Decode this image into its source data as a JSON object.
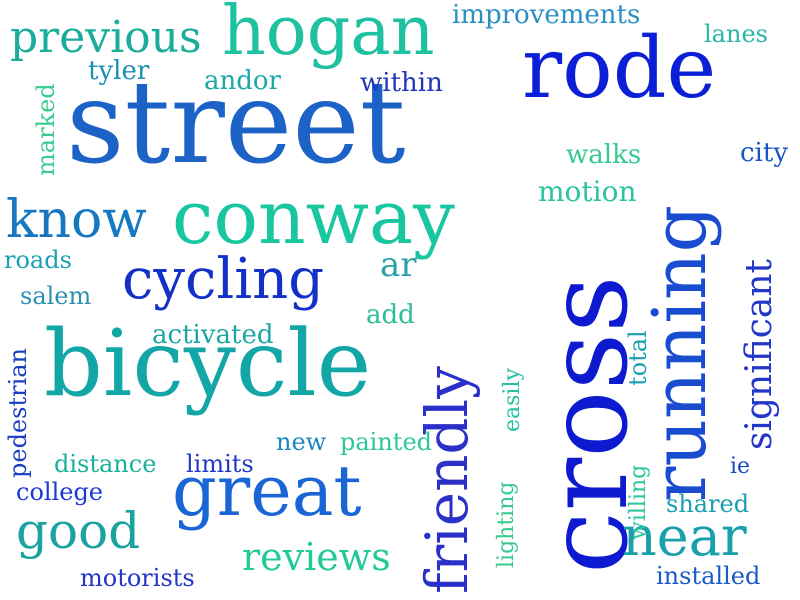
{
  "word_cloud": {
    "words": [
      {
        "text": "street",
        "color": "#1d63c7"
      },
      {
        "text": "cross",
        "color": "#0e1ad0"
      },
      {
        "text": "bicycle",
        "color": "#12a7a6"
      },
      {
        "text": "conway",
        "color": "#18c79f"
      },
      {
        "text": "running",
        "color": "#1a4cd0"
      },
      {
        "text": "rode",
        "color": "#0b1fd6"
      },
      {
        "text": "hogan",
        "color": "#1ec2a0"
      },
      {
        "text": "great",
        "color": "#1a66d6"
      },
      {
        "text": "friendly",
        "color": "#2b30c8"
      },
      {
        "text": "cycling",
        "color": "#1330c9"
      },
      {
        "text": "know",
        "color": "#1778c2"
      },
      {
        "text": "previous",
        "color": "#1aad9a"
      },
      {
        "text": "good",
        "color": "#1aa39f"
      },
      {
        "text": "near",
        "color": "#1aa0aa"
      },
      {
        "text": "reviews",
        "color": "#23c998"
      },
      {
        "text": "significant",
        "color": "#2236c8"
      },
      {
        "text": "improvements",
        "color": "#2a8fc2"
      },
      {
        "text": "motion",
        "color": "#2bc4a0"
      },
      {
        "text": "walks",
        "color": "#36c990"
      },
      {
        "text": "city",
        "color": "#1a56c2"
      },
      {
        "text": "lanes",
        "color": "#28b6a6"
      },
      {
        "text": "tyler",
        "color": "#1a8fb0"
      },
      {
        "text": "andor",
        "color": "#1aa9a6"
      },
      {
        "text": "within",
        "color": "#2236b8"
      },
      {
        "text": "marked",
        "color": "#3acb8c"
      },
      {
        "text": "roads",
        "color": "#1a9fb4"
      },
      {
        "text": "salem",
        "color": "#2a8fb0"
      },
      {
        "text": "ar",
        "color": "#2a9fa6"
      },
      {
        "text": "add",
        "color": "#2bbf98"
      },
      {
        "text": "activated",
        "color": "#1aa7a6"
      },
      {
        "text": "total",
        "color": "#1a9fb0"
      },
      {
        "text": "easily",
        "color": "#26c2a0"
      },
      {
        "text": "pedestrian",
        "color": "#1a3ec0"
      },
      {
        "text": "new",
        "color": "#1a86c2"
      },
      {
        "text": "painted",
        "color": "#2cc79a"
      },
      {
        "text": "distance",
        "color": "#1ab09c"
      },
      {
        "text": "limits",
        "color": "#2238c2"
      },
      {
        "text": "lighting",
        "color": "#38c98e"
      },
      {
        "text": "willing",
        "color": "#28c6a0"
      },
      {
        "text": "ie",
        "color": "#1a49c2"
      },
      {
        "text": "college",
        "color": "#1a3ad6"
      },
      {
        "text": "shared",
        "color": "#1a9fb0"
      },
      {
        "text": "motorists",
        "color": "#2236c8"
      },
      {
        "text": "installed",
        "color": "#1a5bc6"
      }
    ]
  }
}
